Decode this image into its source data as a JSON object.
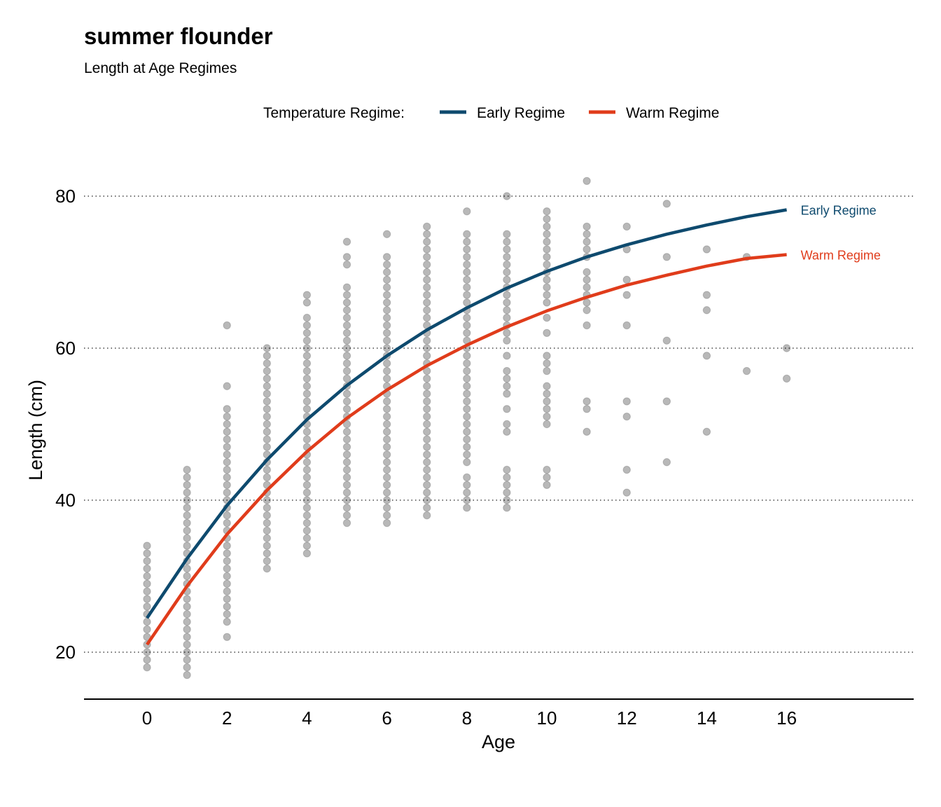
{
  "title": "summer flounder",
  "subtitle": "Length at Age Regimes",
  "chart_data": {
    "type": "scatter",
    "title": "summer flounder",
    "subtitle": "Length at Age Regimes",
    "xlabel": "Age",
    "ylabel": "Length (cm)",
    "xlim": [
      -1.6,
      19.2
    ],
    "ylim": [
      14,
      86
    ],
    "xticks": [
      0,
      2,
      4,
      6,
      8,
      10,
      12,
      14,
      16
    ],
    "yticks": [
      20,
      40,
      60,
      80
    ],
    "grid": "horizontal dotted",
    "legend": {
      "title": "Temperature Regime:",
      "position": "top",
      "entries": [
        "Early Regime",
        "Warm Regime"
      ]
    },
    "series": [
      {
        "name": "Early Regime",
        "type": "line",
        "color": "#0e4a6e",
        "label": "Early Regime",
        "x": [
          0,
          1,
          2,
          3,
          4,
          5,
          6,
          7,
          8,
          9,
          10,
          11,
          12,
          13,
          14,
          15,
          16
        ],
        "y": [
          24.5,
          32.3,
          39.3,
          45.3,
          50.6,
          55.1,
          59.0,
          62.4,
          65.3,
          67.9,
          70.1,
          72.0,
          73.6,
          75.0,
          76.2,
          77.3,
          78.2
        ]
      },
      {
        "name": "Warm Regime",
        "type": "line",
        "color": "#e03c1b",
        "label": "Warm Regime",
        "x": [
          0,
          1,
          2,
          3,
          4,
          5,
          6,
          7,
          8,
          9,
          10,
          11,
          12,
          13,
          14,
          15,
          16
        ],
        "y": [
          21.0,
          28.7,
          35.5,
          41.3,
          46.4,
          50.8,
          54.5,
          57.7,
          60.4,
          62.8,
          64.9,
          66.7,
          68.3,
          69.6,
          70.8,
          71.8,
          72.3
        ]
      }
    ],
    "points": [
      {
        "age": 0,
        "lengths": [
          18,
          19,
          20,
          21,
          22,
          23,
          24,
          25,
          26,
          27,
          28,
          29,
          30,
          31,
          32,
          33,
          34
        ]
      },
      {
        "age": 1,
        "lengths": [
          17,
          18,
          19,
          20,
          21,
          22,
          23,
          24,
          25,
          26,
          27,
          28,
          29,
          30,
          31,
          32,
          33,
          34,
          35,
          36,
          37,
          38,
          39,
          40,
          41,
          42,
          43,
          44
        ]
      },
      {
        "age": 2,
        "lengths": [
          22,
          24,
          25,
          26,
          27,
          28,
          29,
          30,
          31,
          32,
          33,
          34,
          35,
          36,
          37,
          38,
          39,
          40,
          41,
          42,
          43,
          44,
          45,
          46,
          47,
          48,
          49,
          50,
          51,
          52,
          55,
          63
        ]
      },
      {
        "age": 3,
        "lengths": [
          31,
          32,
          33,
          34,
          35,
          36,
          37,
          38,
          39,
          40,
          41,
          42,
          43,
          44,
          45,
          46,
          47,
          48,
          49,
          50,
          51,
          52,
          53,
          54,
          55,
          56,
          57,
          58,
          59,
          60
        ]
      },
      {
        "age": 4,
        "lengths": [
          33,
          34,
          35,
          36,
          37,
          38,
          39,
          40,
          41,
          42,
          43,
          44,
          45,
          46,
          47,
          48,
          49,
          50,
          51,
          52,
          53,
          54,
          55,
          56,
          57,
          58,
          59,
          60,
          61,
          62,
          63,
          64,
          66,
          67
        ]
      },
      {
        "age": 5,
        "lengths": [
          37,
          38,
          39,
          40,
          41,
          42,
          43,
          44,
          45,
          46,
          47,
          48,
          49,
          50,
          51,
          52,
          53,
          54,
          55,
          56,
          57,
          58,
          59,
          60,
          61,
          62,
          63,
          64,
          65,
          66,
          67,
          68,
          71,
          72,
          74
        ]
      },
      {
        "age": 6,
        "lengths": [
          37,
          38,
          39,
          40,
          41,
          42,
          43,
          44,
          45,
          46,
          47,
          48,
          49,
          50,
          51,
          52,
          53,
          54,
          55,
          56,
          57,
          58,
          59,
          60,
          61,
          62,
          63,
          64,
          65,
          66,
          67,
          68,
          69,
          70,
          71,
          72,
          75
        ]
      },
      {
        "age": 7,
        "lengths": [
          38,
          39,
          40,
          41,
          42,
          43,
          44,
          45,
          46,
          47,
          48,
          49,
          50,
          51,
          52,
          53,
          54,
          55,
          56,
          57,
          58,
          59,
          60,
          61,
          62,
          63,
          64,
          65,
          66,
          67,
          68,
          69,
          70,
          71,
          72,
          73,
          74,
          75,
          76
        ]
      },
      {
        "age": 8,
        "lengths": [
          39,
          40,
          41,
          42,
          43,
          45,
          46,
          47,
          48,
          49,
          50,
          51,
          52,
          53,
          54,
          55,
          56,
          57,
          58,
          59,
          60,
          61,
          62,
          63,
          64,
          65,
          66,
          67,
          68,
          69,
          70,
          71,
          72,
          73,
          74,
          75,
          78
        ]
      },
      {
        "age": 9,
        "lengths": [
          39,
          40,
          41,
          42,
          43,
          44,
          49,
          50,
          52,
          54,
          55,
          56,
          57,
          59,
          61,
          62,
          63,
          64,
          65,
          66,
          67,
          68,
          69,
          70,
          71,
          72,
          73,
          74,
          75,
          80
        ]
      },
      {
        "age": 10,
        "lengths": [
          42,
          43,
          44,
          50,
          51,
          52,
          53,
          54,
          55,
          57,
          58,
          59,
          62,
          64,
          66,
          67,
          68,
          69,
          70,
          71,
          72,
          73,
          74,
          75,
          76,
          77,
          78
        ]
      },
      {
        "age": 11,
        "lengths": [
          49,
          52,
          53,
          63,
          65,
          66,
          67,
          68,
          69,
          70,
          72,
          73,
          74,
          75,
          76,
          82
        ]
      },
      {
        "age": 12,
        "lengths": [
          41,
          44,
          51,
          53,
          63,
          67,
          69,
          73,
          76
        ]
      },
      {
        "age": 13,
        "lengths": [
          45,
          53,
          61,
          72,
          79
        ]
      },
      {
        "age": 14,
        "lengths": [
          49,
          59,
          65,
          67,
          73
        ]
      },
      {
        "age": 15,
        "lengths": [
          57,
          72
        ]
      },
      {
        "age": 16,
        "lengths": [
          56,
          60
        ]
      }
    ]
  }
}
